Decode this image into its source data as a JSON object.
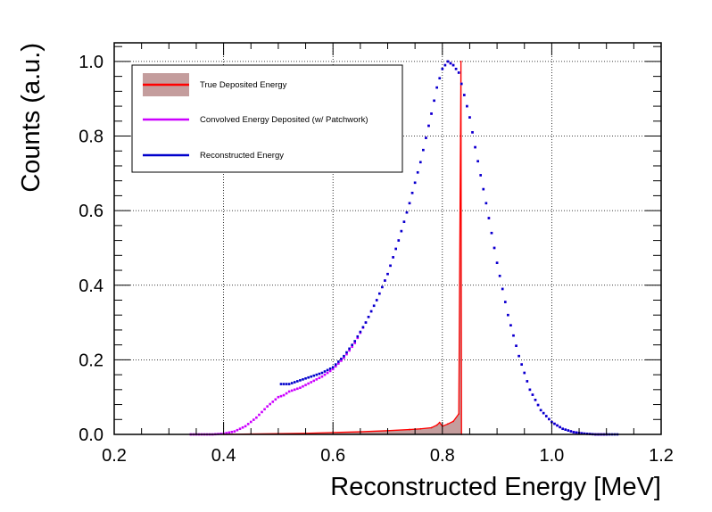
{
  "chart_data": {
    "type": "line",
    "xlabel": "Reconstructed Energy [MeV]",
    "ylabel": "Counts (a.u.)",
    "xlim": [
      0.2,
      1.2
    ],
    "ylim": [
      0.0,
      1.05
    ],
    "x_ticks": [
      "0.2",
      "0.4",
      "0.6",
      "0.8",
      "1.0",
      "1.2"
    ],
    "y_ticks": [
      "0.0",
      "0.2",
      "0.4",
      "0.6",
      "0.8",
      "1.0"
    ],
    "grid": true,
    "legend_position": "top-left",
    "series": [
      {
        "name": "True Deposited Energy",
        "style": "filled-histogram",
        "color": "#ff0000",
        "fill_color": "#b07c7c",
        "x": [
          0.4,
          0.45,
          0.5,
          0.55,
          0.6,
          0.65,
          0.7,
          0.74,
          0.76,
          0.78,
          0.79,
          0.795,
          0.8,
          0.81,
          0.82,
          0.83,
          0.834,
          0.835
        ],
        "y": [
          0.0,
          0.001,
          0.002,
          0.003,
          0.005,
          0.007,
          0.01,
          0.013,
          0.015,
          0.018,
          0.025,
          0.032,
          0.022,
          0.028,
          0.035,
          0.055,
          1.0,
          0.0
        ]
      },
      {
        "name": "Convolved Energy Deposited (w/ Patchwork)",
        "style": "markers",
        "color": "#cc00ff",
        "x": [
          0.34,
          0.36,
          0.38,
          0.4,
          0.42,
          0.44,
          0.46,
          0.48,
          0.5,
          0.51,
          0.52,
          0.54,
          0.56,
          0.58,
          0.6,
          0.62,
          0.64,
          0.66,
          0.68,
          0.7,
          0.72,
          0.74,
          0.76,
          0.78,
          0.79,
          0.8,
          0.81,
          0.82,
          0.83,
          0.84,
          0.85,
          0.86,
          0.88,
          0.9,
          0.92,
          0.94,
          0.96,
          0.98,
          1.0,
          1.02,
          1.04,
          1.06,
          1.08,
          1.1
        ],
        "y": [
          0.0,
          0.0,
          0.0,
          0.002,
          0.008,
          0.022,
          0.045,
          0.075,
          0.1,
          0.105,
          0.115,
          0.125,
          0.14,
          0.155,
          0.175,
          0.205,
          0.245,
          0.3,
          0.36,
          0.43,
          0.52,
          0.62,
          0.73,
          0.86,
          0.93,
          0.98,
          1.0,
          0.99,
          0.97,
          0.91,
          0.85,
          0.77,
          0.62,
          0.46,
          0.32,
          0.21,
          0.12,
          0.065,
          0.033,
          0.015,
          0.006,
          0.002,
          0.0,
          0.0
        ]
      },
      {
        "name": "Reconstructed Energy",
        "style": "markers",
        "color": "#0000cc",
        "x": [
          0.505,
          0.52,
          0.54,
          0.56,
          0.58,
          0.6,
          0.62,
          0.64,
          0.66,
          0.68,
          0.7,
          0.72,
          0.74,
          0.76,
          0.78,
          0.79,
          0.8,
          0.81,
          0.82,
          0.83,
          0.84,
          0.85,
          0.86,
          0.88,
          0.9,
          0.92,
          0.94,
          0.96,
          0.98,
          1.0,
          1.02,
          1.04,
          1.06,
          1.08,
          1.1,
          1.12
        ],
        "y": [
          0.135,
          0.135,
          0.145,
          0.155,
          0.165,
          0.18,
          0.21,
          0.25,
          0.3,
          0.36,
          0.43,
          0.52,
          0.62,
          0.73,
          0.86,
          0.93,
          0.98,
          1.0,
          0.99,
          0.97,
          0.91,
          0.85,
          0.77,
          0.62,
          0.46,
          0.32,
          0.21,
          0.12,
          0.065,
          0.033,
          0.015,
          0.006,
          0.002,
          0.0,
          0.0,
          0.0
        ]
      }
    ]
  }
}
